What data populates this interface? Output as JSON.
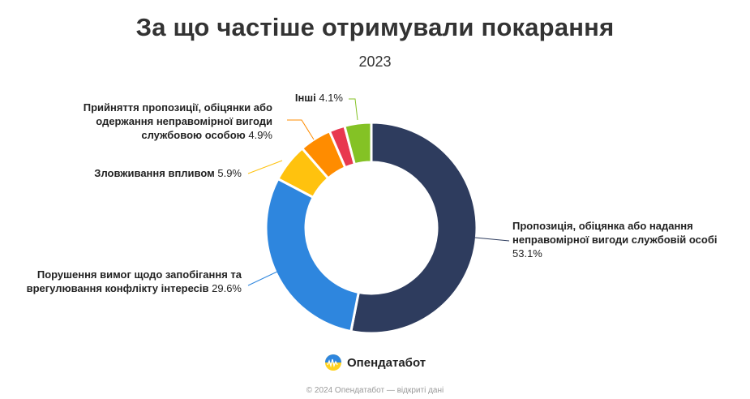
{
  "chart_data": {
    "type": "pie",
    "title": "За що частіше отримували покарання",
    "subtitle": "2023",
    "slices": [
      {
        "lines": [
          "Пропозиція, обіцянка або надання",
          "неправомірної вигоди службовій особі"
        ],
        "value": 53.1,
        "value_text": "53.1%",
        "color": "#2e3c5e"
      },
      {
        "lines": [
          "Порушення вимог щодо запобігання та",
          "врегулювання конфлікту інтересів"
        ],
        "value": 29.6,
        "value_text": "29.6%",
        "color": "#2e86de"
      },
      {
        "lines": [
          "Зловживання впливом"
        ],
        "value": 5.9,
        "value_text": "5.9%",
        "color": "#ffc20e"
      },
      {
        "lines": [
          "Прийняття пропозиції, обіцянки або",
          "одержання неправомірної вигоди",
          "службовою особою"
        ],
        "value": 4.9,
        "value_text": "4.9%",
        "color": "#ff8c00"
      },
      {
        "lines": [
          ""
        ],
        "value": 2.4,
        "value_text": "",
        "color": "#e8384f"
      },
      {
        "lines": [
          "Інші"
        ],
        "value": 4.1,
        "value_text": "4.1%",
        "color": "#84c225"
      }
    ]
  },
  "brand": {
    "name": "Опендатабот"
  },
  "footer": {
    "text": "© 2024 Опендатабот — відкриті дані"
  }
}
